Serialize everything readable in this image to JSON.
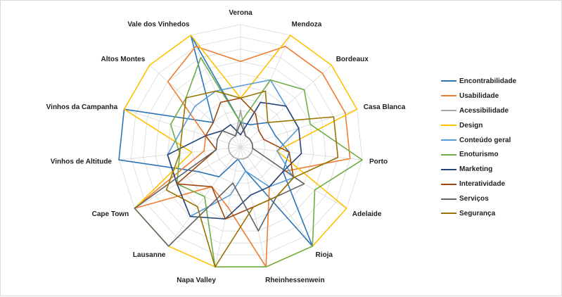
{
  "chart_data": {
    "type": "radar",
    "categories": [
      "Verona",
      "Mendoza",
      "Bordeaux",
      "Casa Blanca",
      "Porto",
      "Adelaide",
      "Rioja",
      "Rheinhessenwein",
      "Napa Valley",
      "Lausanne",
      "Cape Town",
      "Vinhos de Altitude",
      "Vinhos da Campanha",
      "Altos Montes",
      "Vale dos Vinhedos"
    ],
    "rlim": [
      0,
      10
    ],
    "grid": true,
    "legend": "right",
    "series": [
      {
        "name": "Encontrabilidade",
        "color": "#2e75b6",
        "values": [
          2,
          2,
          3,
          3,
          4,
          4,
          10,
          2,
          1,
          3,
          4,
          10,
          10,
          3,
          10
        ]
      },
      {
        "name": "Usabilidade",
        "color": "#ed7d31",
        "values": [
          7,
          9,
          9,
          9,
          9,
          4,
          4,
          10,
          5,
          4,
          10,
          3,
          3,
          8,
          9
        ]
      },
      {
        "name": "Acessibilidade",
        "color": "#a5a5a5",
        "values": [
          3,
          1,
          1,
          1,
          1,
          1,
          1,
          1,
          1,
          1,
          1,
          1,
          1,
          1,
          1
        ]
      },
      {
        "name": "Design",
        "color": "#ffc000",
        "values": [
          4,
          10,
          10,
          10,
          3,
          10,
          10,
          10,
          10,
          10,
          10,
          4,
          10,
          10,
          10
        ]
      },
      {
        "name": "Conteúdo geral",
        "color": "#5b9bd5",
        "values": [
          5,
          6,
          5,
          5,
          3,
          5,
          4,
          2,
          4,
          7,
          6,
          6,
          5,
          5,
          5
        ]
      },
      {
        "name": "Enoturismo",
        "color": "#70ad47",
        "values": [
          2,
          6,
          7,
          6,
          10,
          7,
          10,
          10,
          10,
          5,
          6,
          5,
          6,
          6,
          8
        ]
      },
      {
        "name": "Marketing",
        "color": "#264478",
        "values": [
          1,
          4,
          5,
          5,
          5,
          4,
          4,
          4,
          6,
          7,
          6,
          6,
          3,
          2,
          2
        ]
      },
      {
        "name": "Interatividade",
        "color": "#9e480e",
        "values": [
          4,
          3,
          2,
          2,
          4,
          5,
          5,
          5,
          6,
          4,
          6,
          2,
          3,
          3,
          4
        ]
      },
      {
        "name": "Serviços",
        "color": "#636363",
        "values": [
          2,
          1,
          1,
          1,
          1,
          6,
          5,
          7,
          3,
          10,
          10,
          2,
          2,
          2,
          1
        ]
      },
      {
        "name": "Segurança",
        "color": "#997300",
        "values": [
          4,
          5,
          3,
          8,
          8,
          5,
          5,
          5,
          10,
          6,
          7,
          5,
          5,
          6,
          5
        ]
      }
    ]
  }
}
